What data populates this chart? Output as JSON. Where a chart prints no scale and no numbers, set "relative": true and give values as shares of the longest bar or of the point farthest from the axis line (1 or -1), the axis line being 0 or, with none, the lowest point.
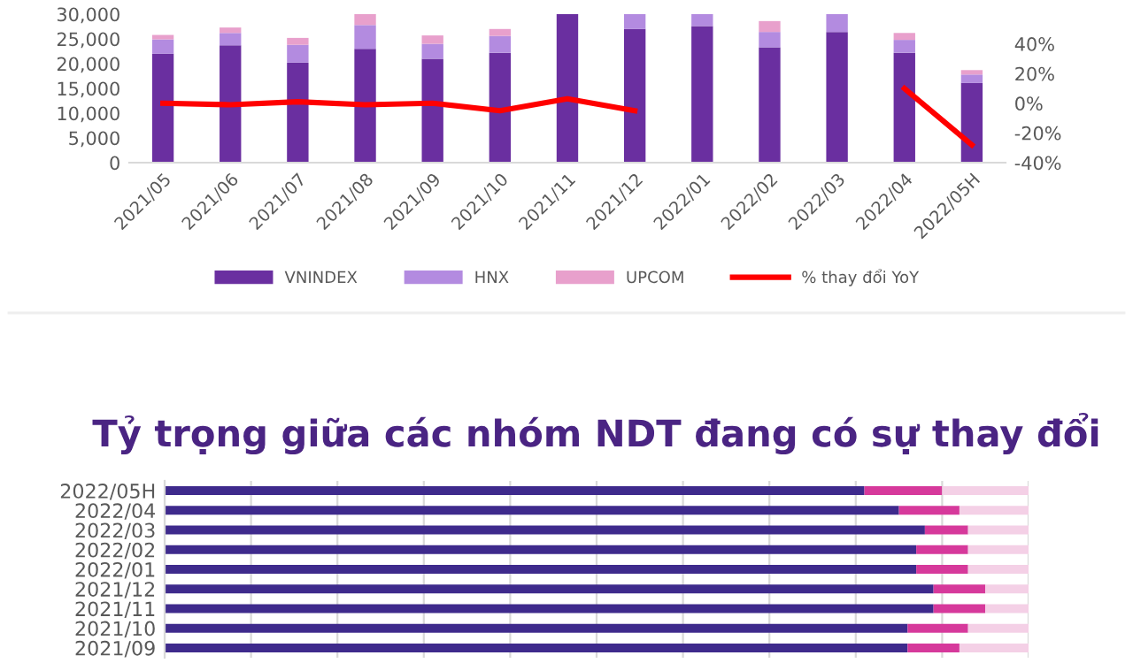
{
  "chart_data": [
    {
      "type": "bar",
      "stacked": true,
      "legend": "bottom",
      "categories": [
        "2021/05",
        "2021/06",
        "2021/07",
        "2021/08",
        "2021/09",
        "2021/10",
        "2021/11",
        "2021/12",
        "2022/01",
        "2022/02",
        "2022/03",
        "2022/04",
        "2022/05H"
      ],
      "series": [
        {
          "name": "VNINDEX",
          "color": "#6a2fa0",
          "values": [
            22000,
            23700,
            20200,
            23000,
            21000,
            22200,
            30000,
            27000,
            27600,
            23300,
            26400,
            22200,
            16100
          ]
        },
        {
          "name": "HNX",
          "color": "#b38be0",
          "values": [
            2900,
            2500,
            3600,
            4800,
            3000,
            3400,
            null,
            3000,
            2400,
            3100,
            3600,
            2600,
            1700
          ]
        },
        {
          "name": "UPCOM",
          "color": "#e8a0cc",
          "values": [
            900,
            1100,
            1400,
            2200,
            1700,
            1400,
            null,
            null,
            null,
            2200,
            null,
            1400,
            900
          ]
        },
        {
          "name": "% thay đổi YoY",
          "type": "line",
          "axis": "y2",
          "color": "#ff0000",
          "values": [
            0,
            -1,
            1,
            -1,
            0,
            -5,
            3,
            -5,
            null,
            null,
            null,
            10,
            -28
          ]
        }
      ],
      "ylim": [
        0,
        30000
      ],
      "yticks": [
        0,
        {
          "value": 5000,
          "label": "5,000"
        },
        {
          "value": 10000,
          "label": "10,000"
        },
        {
          "value": 15000,
          "label": "15,000"
        },
        {
          "value": 20000,
          "label": "20,000"
        },
        {
          "value": 25000,
          "label": "25,000"
        },
        {
          "value": 30000,
          "label": "30,000"
        }
      ],
      "y2lim": [
        -40,
        60
      ],
      "y2ticks": [
        {
          "value": -40,
          "label": "-40%"
        },
        {
          "value": -20,
          "label": "-20%"
        },
        {
          "value": 0,
          "label": "0%"
        },
        {
          "value": 20,
          "label": "20%"
        },
        {
          "value": 40,
          "label": "40%"
        }
      ]
    },
    {
      "type": "bar",
      "stacked": true,
      "orientation": "horizontal",
      "relative": true,
      "grid": "x",
      "title": "Tỷ trọng giữa các nhóm NDT đang có sự thay đổi",
      "categories": [
        "2022/05H",
        "2022/04",
        "2022/03",
        "2022/02",
        "2022/01",
        "2021/12",
        "2021/11",
        "2021/10",
        "2021/09"
      ],
      "series": [
        {
          "color": "#3e2a8c",
          "values": [
            0.81,
            0.85,
            0.88,
            0.87,
            0.87,
            0.89,
            0.89,
            0.86,
            0.86
          ]
        },
        {
          "color": "#d6399b",
          "values": [
            0.09,
            0.07,
            0.05,
            0.06,
            0.06,
            0.06,
            0.06,
            0.07,
            0.06
          ]
        },
        {
          "color": "#f4d0e6",
          "values": [
            0.1,
            0.08,
            0.07,
            0.07,
            0.07,
            0.05,
            0.05,
            0.07,
            0.08
          ]
        }
      ]
    }
  ]
}
